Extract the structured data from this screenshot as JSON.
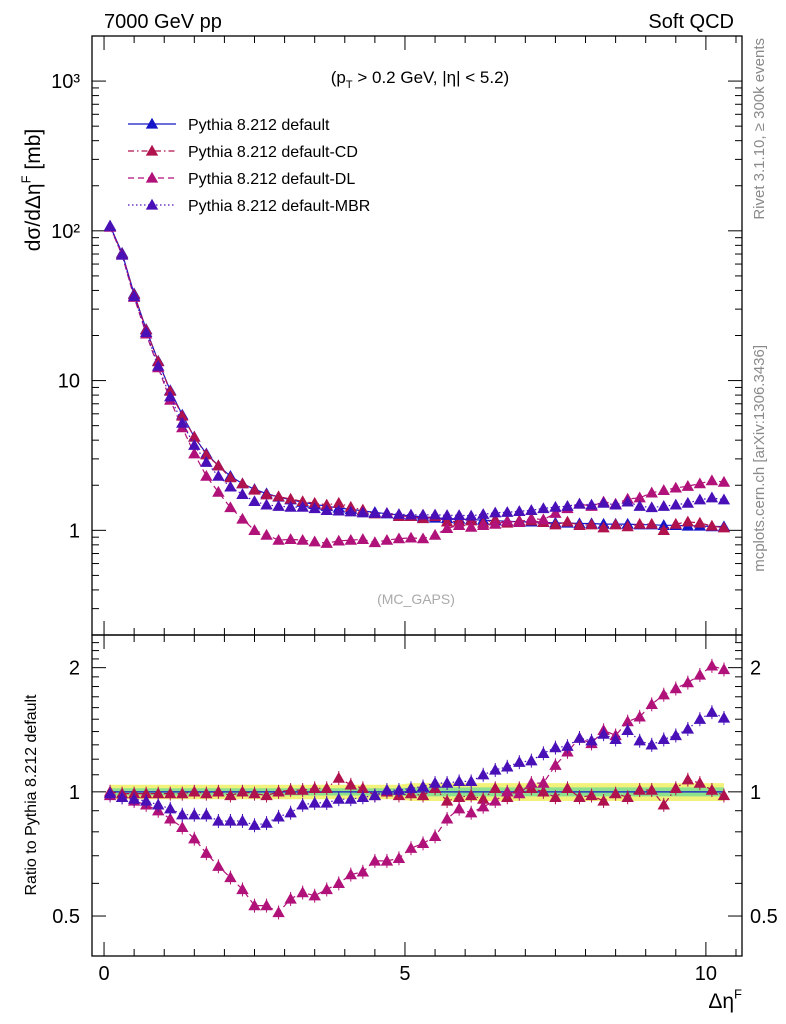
{
  "header": {
    "left": "7000 GeV pp",
    "right": "Soft QCD"
  },
  "side_text": {
    "rivet": "Rivet 3.1.10, ≥ 300k events",
    "mcplots": "mcplots.cern.ch [arXiv:1306.3436]"
  },
  "main_plot": {
    "ylabel": "dσ/dΔη^{F} [mb]",
    "cut_label": "(p_T > 0.2 GeV, |η| < 5.2)",
    "watermark": "(MC_GAPS)",
    "y_scale": "log",
    "y_tick_labels": [
      "1",
      "10",
      "10²",
      "10³"
    ]
  },
  "ratio_plot": {
    "ylabel": "Ratio to Pythia 8.212 default",
    "y_tick_labels": [
      "0.5",
      "1",
      "2"
    ]
  },
  "x_axis": {
    "label": "Δη^{F}",
    "tick_labels": [
      "0",
      "5",
      "10"
    ]
  },
  "colors": {
    "default": "#1515c8",
    "cd": "#b0124e",
    "dl": "#b0127a",
    "mbr": "#4a10b8",
    "band_yellow": "#f2f27a",
    "band_green": "#8de08d"
  },
  "chart_data": [
    {
      "type": "scatter",
      "title": "",
      "xlabel": "Δη^{F}",
      "ylabel": "dσ/dΔη^{F} [mb]",
      "xlim": [
        -0.2,
        10.6
      ],
      "ylim": [
        0.2,
        2000
      ],
      "y_scale": "log",
      "legend_position": "top-left",
      "x": [
        0.1,
        0.3,
        0.5,
        0.7,
        0.9,
        1.1,
        1.3,
        1.5,
        1.7,
        1.9,
        2.1,
        2.3,
        2.5,
        2.7,
        2.9,
        3.1,
        3.3,
        3.5,
        3.7,
        3.9,
        4.1,
        4.3,
        4.5,
        4.7,
        4.9,
        5.1,
        5.3,
        5.5,
        5.7,
        5.9,
        6.1,
        6.3,
        6.5,
        6.7,
        6.9,
        7.1,
        7.3,
        7.5,
        7.7,
        7.9,
        8.1,
        8.3,
        8.5,
        8.7,
        8.9,
        9.1,
        9.3,
        9.5,
        9.7,
        9.9,
        10.1,
        10.3
      ],
      "series": [
        {
          "name": "Pythia 8.212 default",
          "line_style": "solid",
          "values": [
            108,
            71,
            38,
            22,
            13.5,
            8.6,
            5.9,
            4.2,
            3.25,
            2.7,
            2.3,
            2.05,
            1.88,
            1.76,
            1.67,
            1.6,
            1.54,
            1.49,
            1.45,
            1.41,
            1.38,
            1.35,
            1.32,
            1.29,
            1.27,
            1.25,
            1.23,
            1.21,
            1.2,
            1.19,
            1.18,
            1.17,
            1.16,
            1.15,
            1.14,
            1.14,
            1.13,
            1.12,
            1.12,
            1.11,
            1.11,
            1.1,
            1.1,
            1.1,
            1.09,
            1.09,
            1.08,
            1.08,
            1.07,
            1.07,
            1.06,
            1.06
          ]
        },
        {
          "name": "Pythia 8.212 default-CD",
          "line_style": "dash-dot",
          "values": [
            107,
            70,
            37.5,
            21.8,
            13.4,
            8.5,
            5.8,
            4.2,
            3.2,
            2.7,
            2.25,
            2.05,
            1.86,
            1.73,
            1.68,
            1.62,
            1.56,
            1.52,
            1.48,
            1.52,
            1.43,
            1.37,
            1.29,
            1.3,
            1.24,
            1.24,
            1.2,
            1.24,
            1.14,
            1.15,
            1.16,
            1.12,
            1.18,
            1.12,
            1.16,
            1.16,
            1.13,
            1.09,
            1.14,
            1.08,
            1.09,
            1.04,
            1.09,
            1.06,
            1.1,
            1.1,
            1.0,
            1.1,
            1.14,
            1.12,
            1.07,
            1.04
          ]
        },
        {
          "name": "Pythia 8.212 default-DL",
          "line_style": "dashed",
          "values": [
            106,
            69,
            36,
            20.5,
            12.2,
            7.4,
            4.85,
            3.25,
            2.3,
            1.8,
            1.42,
            1.19,
            1.0,
            0.93,
            0.86,
            0.87,
            0.86,
            0.84,
            0.82,
            0.85,
            0.86,
            0.87,
            0.83,
            0.86,
            0.88,
            0.89,
            0.88,
            0.93,
            1.03,
            1.08,
            1.05,
            1.08,
            1.1,
            1.15,
            1.13,
            1.2,
            1.18,
            1.3,
            1.4,
            1.5,
            1.45,
            1.55,
            1.5,
            1.62,
            1.65,
            1.78,
            1.85,
            1.92,
            1.97,
            2.05,
            2.15,
            2.1
          ]
        },
        {
          "name": "Pythia 8.212 default-MBR",
          "line_style": "dotted",
          "values": [
            107,
            69,
            36.5,
            21,
            12.5,
            7.8,
            5.2,
            3.7,
            2.85,
            2.3,
            1.95,
            1.74,
            1.56,
            1.48,
            1.45,
            1.43,
            1.43,
            1.4,
            1.36,
            1.35,
            1.33,
            1.31,
            1.3,
            1.3,
            1.28,
            1.27,
            1.27,
            1.27,
            1.26,
            1.26,
            1.25,
            1.28,
            1.31,
            1.32,
            1.34,
            1.36,
            1.4,
            1.43,
            1.45,
            1.5,
            1.48,
            1.52,
            1.48,
            1.55,
            1.45,
            1.42,
            1.45,
            1.48,
            1.52,
            1.6,
            1.65,
            1.6
          ]
        }
      ]
    },
    {
      "type": "scatter",
      "title": "",
      "xlabel": "Δη^{F}",
      "ylabel": "Ratio to Pythia 8.212 default",
      "xlim": [
        -0.2,
        10.6
      ],
      "ylim": [
        0.4,
        2.4
      ],
      "y_scale": "log",
      "x": [
        0.1,
        0.3,
        0.5,
        0.7,
        0.9,
        1.1,
        1.3,
        1.5,
        1.7,
        1.9,
        2.1,
        2.3,
        2.5,
        2.7,
        2.9,
        3.1,
        3.3,
        3.5,
        3.7,
        3.9,
        4.1,
        4.3,
        4.5,
        4.7,
        4.9,
        5.1,
        5.3,
        5.5,
        5.7,
        5.9,
        6.1,
        6.3,
        6.5,
        6.7,
        6.9,
        7.1,
        7.3,
        7.5,
        7.7,
        7.9,
        8.1,
        8.3,
        8.5,
        8.7,
        8.9,
        9.1,
        9.3,
        9.5,
        9.7,
        9.9,
        10.1,
        10.3
      ],
      "band": {
        "yellow": [
          [
            0.1,
            0.96,
            1.04
          ],
          [
            4.9,
            0.96,
            1.04
          ],
          [
            5.1,
            0.95,
            1.05
          ],
          [
            10.3,
            0.95,
            1.05
          ]
        ],
        "green": [
          [
            0.1,
            0.98,
            1.02
          ],
          [
            4.9,
            0.98,
            1.02
          ],
          [
            5.1,
            0.975,
            1.025
          ],
          [
            10.3,
            0.975,
            1.025
          ]
        ]
      },
      "series": [
        {
          "name": "Pythia 8.212 default-CD",
          "line_style": "dash-dot",
          "values": [
            1.0,
            0.99,
            0.99,
            0.99,
            0.99,
            0.99,
            0.99,
            1.0,
            0.99,
            1.0,
            0.98,
            1.0,
            0.99,
            0.98,
            1.0,
            1.01,
            1.01,
            1.02,
            1.02,
            1.08,
            1.04,
            1.02,
            0.98,
            1.0,
            0.98,
            0.99,
            0.98,
            1.02,
            0.95,
            0.97,
            0.98,
            0.96,
            1.02,
            0.97,
            1.02,
            1.02,
            1.0,
            0.97,
            1.02,
            0.97,
            0.98,
            0.95,
            0.99,
            0.97,
            1.01,
            1.01,
            0.93,
            1.02,
            1.07,
            1.05,
            1.01,
            0.98
          ]
        },
        {
          "name": "Pythia 8.212 default-DL",
          "line_style": "dashed",
          "values": [
            0.98,
            0.97,
            0.95,
            0.93,
            0.9,
            0.86,
            0.82,
            0.77,
            0.71,
            0.66,
            0.62,
            0.58,
            0.53,
            0.53,
            0.51,
            0.55,
            0.57,
            0.56,
            0.58,
            0.6,
            0.63,
            0.64,
            0.68,
            0.68,
            0.69,
            0.73,
            0.75,
            0.78,
            0.86,
            0.91,
            0.89,
            0.92,
            0.95,
            1.0,
            0.99,
            1.05,
            1.05,
            1.16,
            1.25,
            1.35,
            1.31,
            1.41,
            1.37,
            1.48,
            1.52,
            1.63,
            1.72,
            1.78,
            1.84,
            1.92,
            2.02,
            1.98
          ]
        },
        {
          "name": "Pythia 8.212 default-MBR",
          "line_style": "dotted",
          "values": [
            0.99,
            0.97,
            0.96,
            0.95,
            0.93,
            0.91,
            0.88,
            0.88,
            0.88,
            0.85,
            0.85,
            0.85,
            0.83,
            0.84,
            0.87,
            0.89,
            0.93,
            0.94,
            0.94,
            0.96,
            0.96,
            0.97,
            0.98,
            1.01,
            1.01,
            1.02,
            1.03,
            1.05,
            1.05,
            1.06,
            1.06,
            1.1,
            1.13,
            1.15,
            1.18,
            1.19,
            1.24,
            1.28,
            1.29,
            1.35,
            1.33,
            1.38,
            1.34,
            1.41,
            1.33,
            1.3,
            1.34,
            1.37,
            1.42,
            1.5,
            1.56,
            1.51
          ]
        }
      ]
    }
  ]
}
